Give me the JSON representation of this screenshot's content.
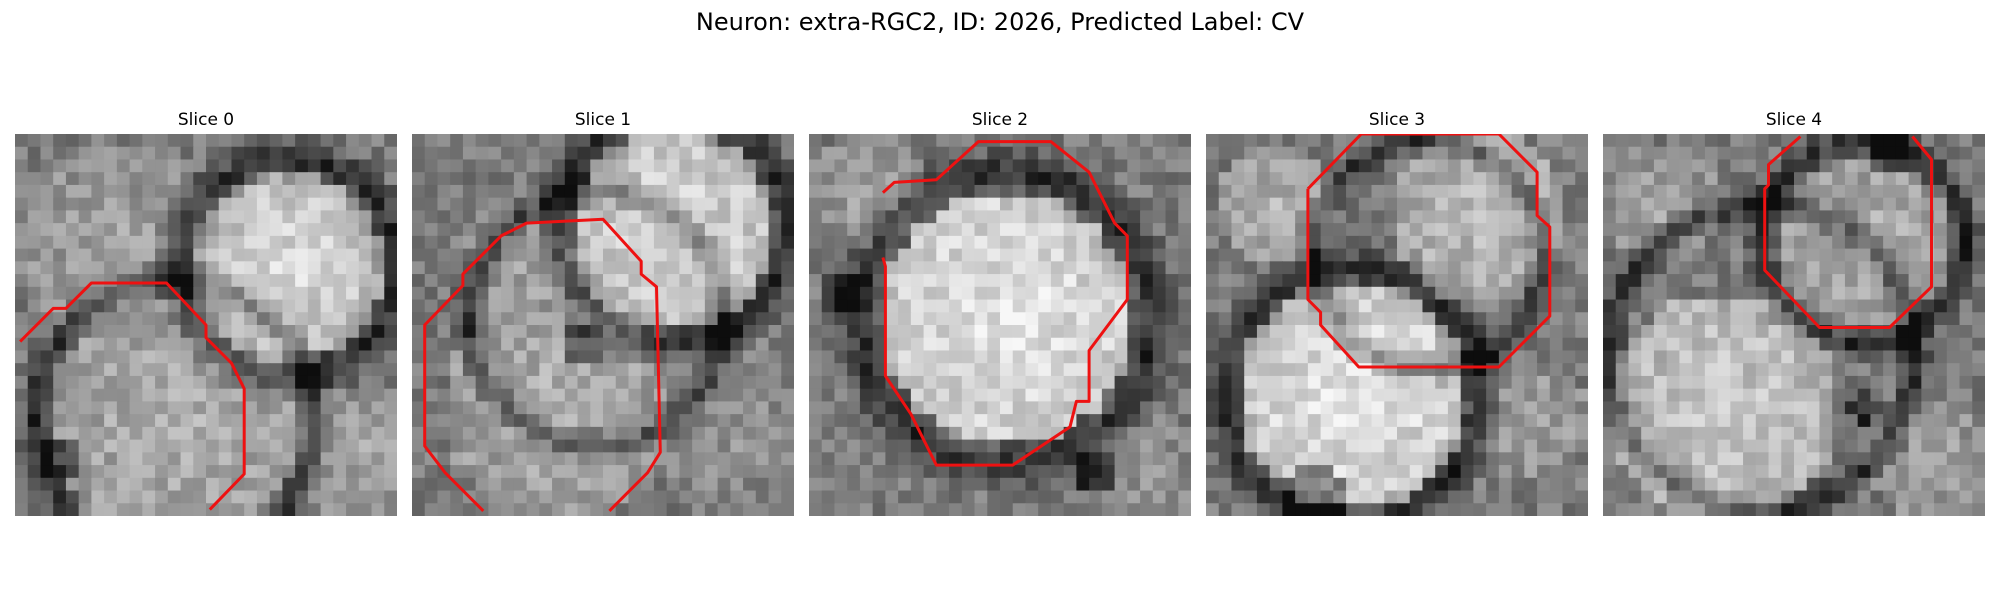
{
  "title": "Neuron: extra-RGC2, ID: 2026, Predicted Label: CV",
  "panels": [
    {
      "label": "Slice 0"
    },
    {
      "label": "Slice 1"
    },
    {
      "label": "Slice 2"
    },
    {
      "label": "Slice 3"
    },
    {
      "label": "Slice 4"
    }
  ],
  "colors": {
    "contour": "#ee1111"
  }
}
